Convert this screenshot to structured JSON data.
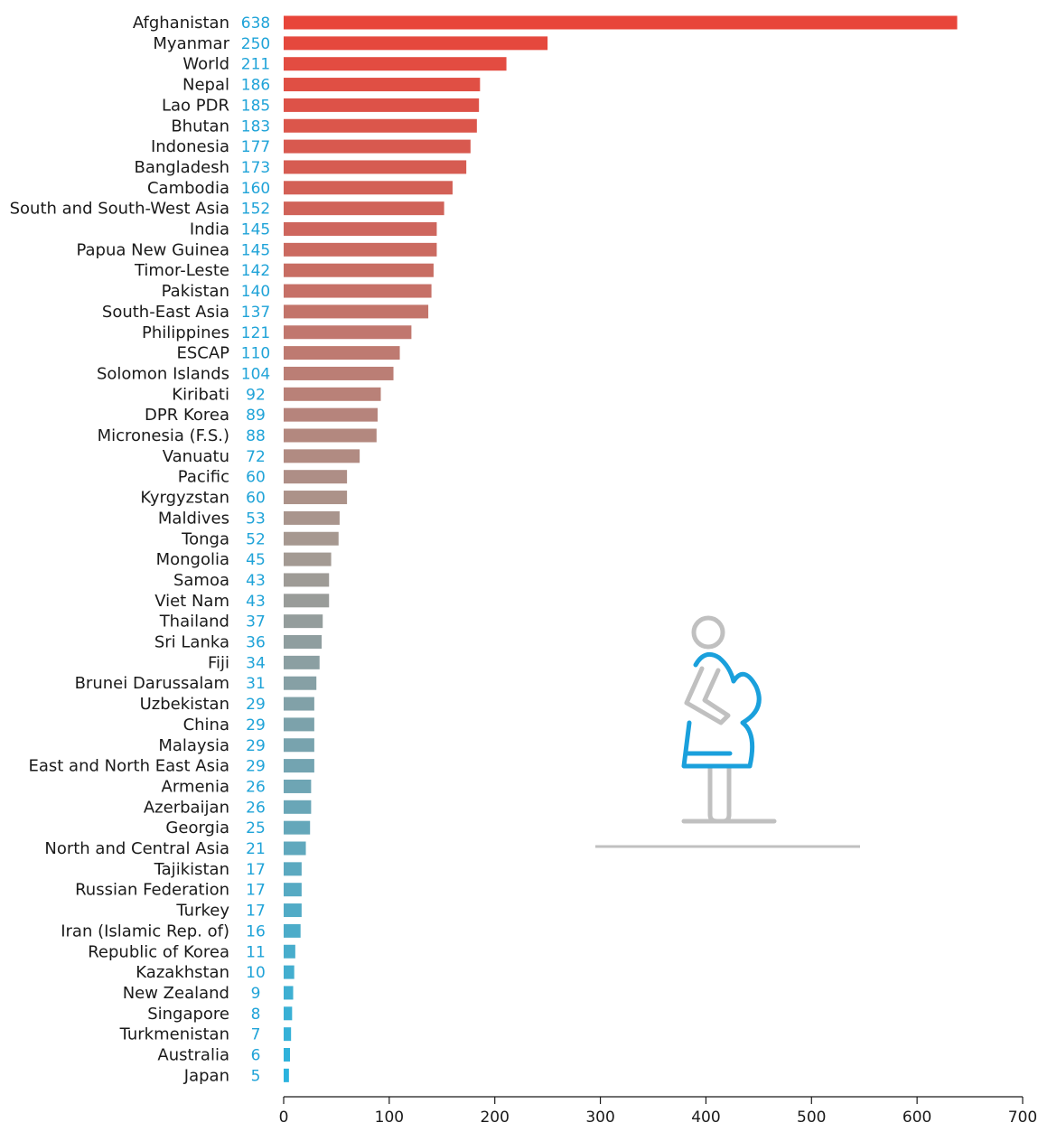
{
  "chart_data": {
    "type": "bar",
    "orientation": "horizontal",
    "categories": [
      "Afghanistan",
      "Myanmar",
      "World",
      "Nepal",
      "Lao PDR",
      "Bhutan",
      "Indonesia",
      "Bangladesh",
      "Cambodia",
      "South and South-West Asia",
      "India",
      "Papua New Guinea",
      "Timor-Leste",
      "Pakistan",
      "South-East Asia",
      "Philippines",
      "ESCAP",
      "Solomon Islands",
      "Kiribati",
      "DPR Korea",
      "Micronesia (F.S.)",
      "Vanuatu",
      "Pacific",
      "Kyrgyzstan",
      "Maldives",
      "Tonga",
      "Mongolia",
      "Samoa",
      "Viet Nam",
      "Thailand",
      "Sri Lanka",
      "Fiji",
      "Brunei Darussalam",
      "Uzbekistan",
      "China",
      "Malaysia",
      "East and North East Asia",
      "Armenia",
      "Azerbaijan",
      "Georgia",
      "North and Central Asia",
      "Tajikistan",
      "Russian Federation",
      "Turkey",
      "Iran (Islamic Rep. of)",
      "Republic of Korea",
      "Kazakhstan",
      "New Zealand",
      "Singapore",
      "Turkmenistan",
      "Australia",
      "Japan"
    ],
    "values": [
      638,
      250,
      211,
      186,
      185,
      183,
      177,
      173,
      160,
      152,
      145,
      145,
      142,
      140,
      137,
      121,
      110,
      104,
      92,
      89,
      88,
      72,
      60,
      60,
      53,
      52,
      45,
      43,
      43,
      37,
      36,
      34,
      31,
      29,
      29,
      29,
      29,
      26,
      26,
      25,
      21,
      17,
      17,
      17,
      16,
      11,
      10,
      9,
      8,
      7,
      6,
      5
    ],
    "title": "",
    "xlabel": "",
    "ylabel": "",
    "xlim": [
      0,
      700
    ],
    "xticks": [
      "0",
      "100",
      "200",
      "300",
      "400",
      "500",
      "600",
      "700"
    ],
    "grid": false,
    "colors": {
      "top": "#e8453a",
      "mid": "#a59a92",
      "bottom": "#2bb3de",
      "value_label": "#1fa3d8",
      "icon_grey": "#c0c0c0",
      "icon_blue": "#1aa0dc"
    },
    "icon": "pregnant-woman-icon"
  }
}
